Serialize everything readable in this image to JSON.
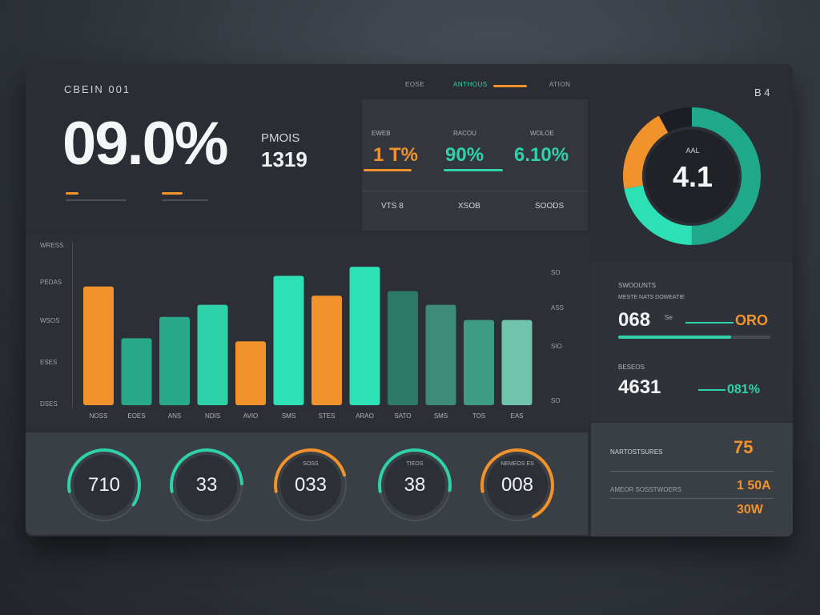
{
  "header": {
    "brand": "CBEIN 001",
    "nav": [
      "EOSE",
      "ANTHOUS",
      "ATION"
    ],
    "corner": "B 4"
  },
  "hero": {
    "percent": "09.0%",
    "label": "PMOIS",
    "value": "1319"
  },
  "stats": [
    {
      "label": "EWEB",
      "value": "1 T%",
      "foot": "VTS 8",
      "color": "#f2922b"
    },
    {
      "label": "RACOU",
      "value": "90%",
      "foot": "XSOB",
      "color": "#2ed1a8"
    },
    {
      "label": "WOLOE",
      "value": "6.10%",
      "foot": "SOODS",
      "color": "#2ed1a8"
    }
  ],
  "donut": {
    "label": "AAL",
    "value": "4.1",
    "segments": [
      {
        "fraction": 0.5,
        "color": "#1fa88a"
      },
      {
        "fraction": 0.22,
        "color": "#2ee0b5"
      },
      {
        "fraction": 0.2,
        "color": "#f2922b"
      },
      {
        "fraction": 0.08,
        "color": "#1b1e22"
      }
    ]
  },
  "chart_data": {
    "type": "bar",
    "title": "",
    "xlabel": "",
    "ylabel": "",
    "ylim": [
      0,
      100
    ],
    "y_ticks_left": [
      "WRESS",
      "PEDAS",
      "WSOS",
      "ESES",
      "DSES"
    ],
    "y_ticks_right": [
      "SO",
      "ASS",
      "SIO",
      "SO"
    ],
    "categories": [
      "NOSS",
      "EOES",
      "ANS",
      "NDIS",
      "AVIO",
      "SMS",
      "STES",
      "ARAO",
      "SATO",
      "SMS",
      "TOS",
      "EAS"
    ],
    "values": [
      78,
      44,
      58,
      66,
      42,
      85,
      72,
      91,
      75,
      66,
      56,
      56
    ],
    "colors": [
      "#f2922b",
      "#2aa88a",
      "#2aa88a",
      "#2ed1a8",
      "#f2922b",
      "#2ee0b5",
      "#f2922b",
      "#2ee0b5",
      "#2c7a66",
      "#3d8c78",
      "#3f9c84",
      "#6fc4ab"
    ],
    "grid": false,
    "legend": "none"
  },
  "metrics": {
    "top_label": "SWOOUNTS",
    "sub_label": "MESTE NATS DOWEATIE",
    "value1": "068",
    "value1_unit": "Se",
    "value1_side": "ORO",
    "value1_progress": 0.74,
    "label2": "BESEOS",
    "value2": "4631",
    "value2_side": "081%"
  },
  "gauges": [
    {
      "value": "710",
      "label": "",
      "fraction": 0.62,
      "color": "#2ed1a8"
    },
    {
      "value": "33",
      "label": "",
      "fraction": 0.52,
      "color": "#2ed1a8"
    },
    {
      "value": "033",
      "label": "SOSS",
      "fraction": 0.48,
      "color": "#f2922b"
    },
    {
      "value": "38",
      "label": "TIEOS",
      "fraction": 0.55,
      "color": "#2ed1a8"
    },
    {
      "value": "008",
      "label": "NEMEOS ES",
      "fraction": 0.7,
      "color": "#f2922b"
    }
  ],
  "bottom_right": {
    "row1_label": "NARTOSTSURES",
    "row1_value": "75",
    "row2_label": "AMEOR SOSSTWOERS",
    "row2_value": "1 50A",
    "row3_value": "30W"
  }
}
